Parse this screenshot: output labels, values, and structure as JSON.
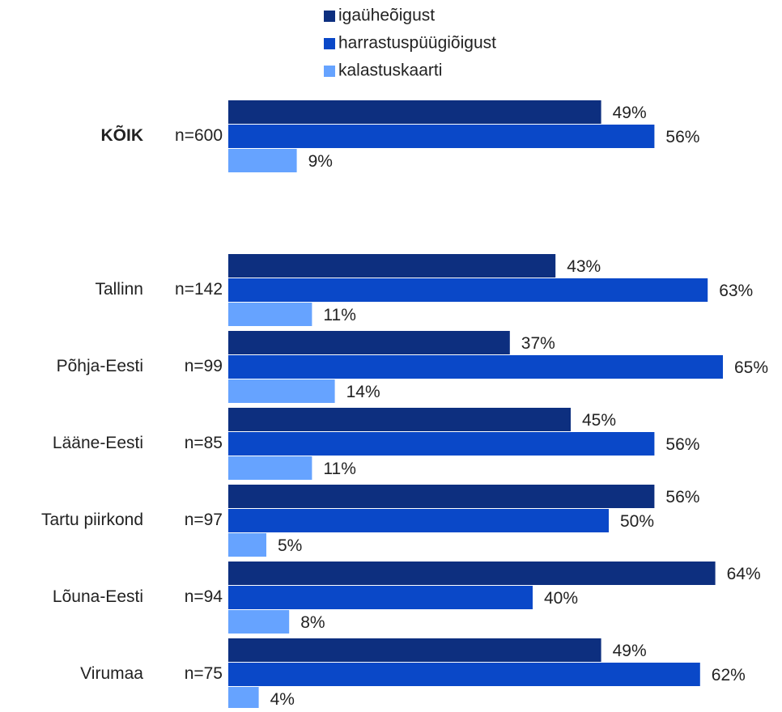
{
  "chart_data": {
    "type": "bar",
    "orientation": "horizontal",
    "categories": [
      "KÕIK",
      "Tallinn",
      "Põhja-Eesti",
      "Lääne-Eesti",
      "Tartu piirkond",
      "Lõuna-Eesti",
      "Virumaa"
    ],
    "sample_sizes": [
      "n=600",
      "n=142",
      "n=99",
      "n=85",
      "n=97",
      "n=94",
      "n=75"
    ],
    "series": [
      {
        "name": "igaüheõigust",
        "color": "#0d2f7f",
        "values": [
          49,
          43,
          37,
          45,
          56,
          64,
          49
        ],
        "value_labels": [
          "49%",
          "43%",
          "37%",
          "45%",
          "56%",
          "64%",
          "49%"
        ]
      },
      {
        "name": "harrastuspüügiõigust",
        "color": "#0a48c8",
        "values": [
          56,
          63,
          65,
          56,
          50,
          40,
          62
        ],
        "value_labels": [
          "56%",
          "63%",
          "65%",
          "56%",
          "50%",
          "40%",
          "62%"
        ]
      },
      {
        "name": "kalastuskaarti",
        "color": "#66a3ff",
        "values": [
          9,
          11,
          14,
          11,
          5,
          8,
          4
        ],
        "value_labels": [
          "9%",
          "11%",
          "14%",
          "11%",
          "5%",
          "8%",
          "4%"
        ]
      }
    ],
    "legend": "top"
  }
}
